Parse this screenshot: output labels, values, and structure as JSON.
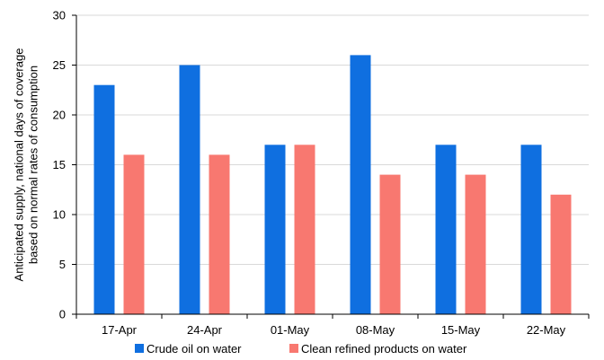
{
  "chart_data": {
    "type": "bar",
    "categories": [
      "17-Apr",
      "24-Apr",
      "01-May",
      "08-May",
      "15-May",
      "22-May"
    ],
    "series": [
      {
        "name": "Crude oil on water",
        "values": [
          23,
          25,
          17,
          26,
          17,
          17
        ],
        "color": "#0f6fe0"
      },
      {
        "name": "Clean refined products on water",
        "values": [
          16,
          16,
          17,
          14,
          14,
          12
        ],
        "color": "#f87870"
      }
    ],
    "ylabel_lines": [
      "Anticipated supply, national days of coverage",
      "based on normal rates of consumption"
    ],
    "xlabel": "",
    "ylim": [
      0,
      30
    ],
    "yticks": [
      0,
      5,
      10,
      15,
      20,
      25,
      30
    ],
    "grid": true,
    "legend_position": "bottom"
  }
}
